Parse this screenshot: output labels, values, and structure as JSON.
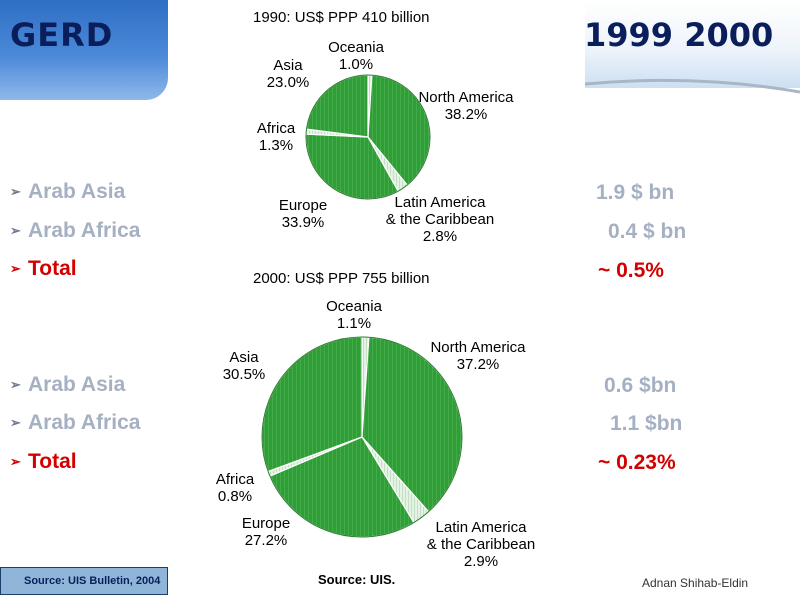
{
  "header": {
    "title": "GERD",
    "years": "1999 2000"
  },
  "bullets_1999": [
    {
      "label": "Arab Asia",
      "value": "1.9 $ bn",
      "total": false
    },
    {
      "label": "Arab Africa",
      "value": "0.4 $ bn",
      "total": false
    },
    {
      "label": "Total",
      "value": "~ 0.5%",
      "total": true
    }
  ],
  "bullets_2000": [
    {
      "label": "Arab Asia",
      "value": "0.6 $bn",
      "total": false
    },
    {
      "label": "Arab Africa",
      "value": "1.1 $bn",
      "total": false
    },
    {
      "label": "Total",
      "value": "~ 0.23%",
      "total": true
    }
  ],
  "colors": {
    "pie_fill": "#2f9e36",
    "pie_light": "#cfe7cf",
    "total_red": "#d40000",
    "title_navy": "#0a1e5c",
    "bullet_gray": "#a5b0c2"
  },
  "chart_data": [
    {
      "type": "pie",
      "title": "1990: US$ PPP 410 billion",
      "series": [
        {
          "label": "Oceania",
          "pct_label": "1.0%",
          "value": 1.0
        },
        {
          "label": "North America",
          "pct_label": "38.2%",
          "value": 38.2
        },
        {
          "label": "Latin America & the Caribbean",
          "label_lines": [
            "Latin America",
            "& the Caribbean"
          ],
          "pct_label": "2.8%",
          "value": 2.8
        },
        {
          "label": "Europe",
          "pct_label": "33.9%",
          "value": 33.9
        },
        {
          "label": "Africa",
          "pct_label": "1.3%",
          "value": 1.3
        },
        {
          "label": "Asia",
          "pct_label": "23.0%",
          "value": 23.0
        }
      ]
    },
    {
      "type": "pie",
      "title": "2000: US$ PPP 755 billion",
      "series": [
        {
          "label": "Oceania",
          "pct_label": "1.1%",
          "value": 1.1
        },
        {
          "label": "North America",
          "pct_label": "37.2%",
          "value": 37.2
        },
        {
          "label": "Latin America & the Caribbean",
          "label_lines": [
            "Latin America",
            "& the Caribbean"
          ],
          "pct_label": "2.9%",
          "value": 2.9
        },
        {
          "label": "Europe",
          "pct_label": "27.2%",
          "value": 27.2
        },
        {
          "label": "Africa",
          "pct_label": "0.8%",
          "value": 0.8
        },
        {
          "label": "Asia",
          "pct_label": "30.5%",
          "value": 30.5
        }
      ],
      "source": "Source: UIS."
    }
  ],
  "footer": {
    "source": "Source: UIS Bulletin, 2004",
    "author": "Adnan Shihab-Eldin"
  }
}
